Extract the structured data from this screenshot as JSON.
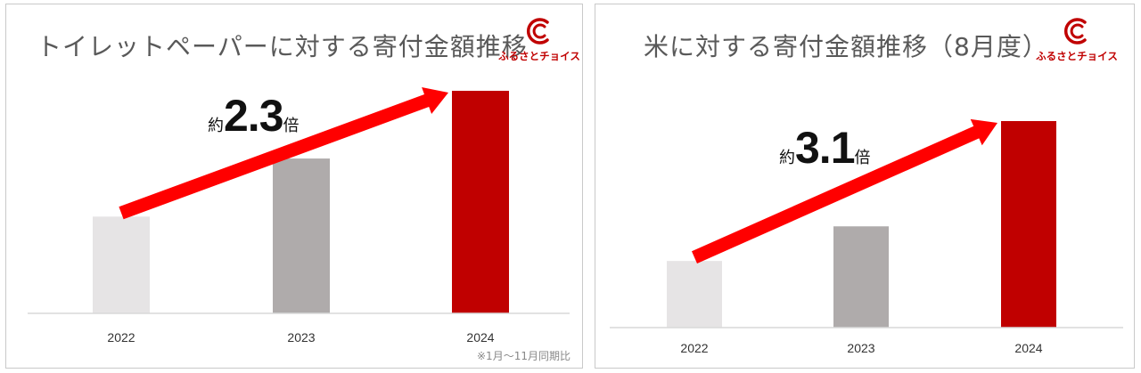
{
  "logo": {
    "text": "ふるさとチョイス",
    "color": "#c00000"
  },
  "colors": {
    "arrow": "#ff0000",
    "axis": "#d9d9d9"
  },
  "chart_data": [
    {
      "type": "bar",
      "title": "トイレットペーパーに対する寄付金額推移",
      "categories": [
        "2022",
        "2023",
        "2024"
      ],
      "values": [
        1.0,
        1.6,
        2.3
      ],
      "colors": [
        "#e6e4e5",
        "#afabab",
        "#c00000"
      ],
      "ylim": [
        0,
        2.3
      ],
      "xlabel": "",
      "ylabel": "",
      "annotation": {
        "prefix": "約",
        "value": "2.3",
        "suffix": "倍"
      },
      "note": "※1月～11月同期比"
    },
    {
      "type": "bar",
      "title": "米に対する寄付金額推移（8月度）",
      "categories": [
        "2022",
        "2023",
        "2024"
      ],
      "values": [
        1.0,
        1.52,
        3.1
      ],
      "colors": [
        "#e6e4e5",
        "#afabab",
        "#c00000"
      ],
      "ylim": [
        0,
        3.1
      ],
      "xlabel": "",
      "ylabel": "",
      "annotation": {
        "prefix": "約",
        "value": "3.1",
        "suffix": "倍"
      }
    }
  ]
}
